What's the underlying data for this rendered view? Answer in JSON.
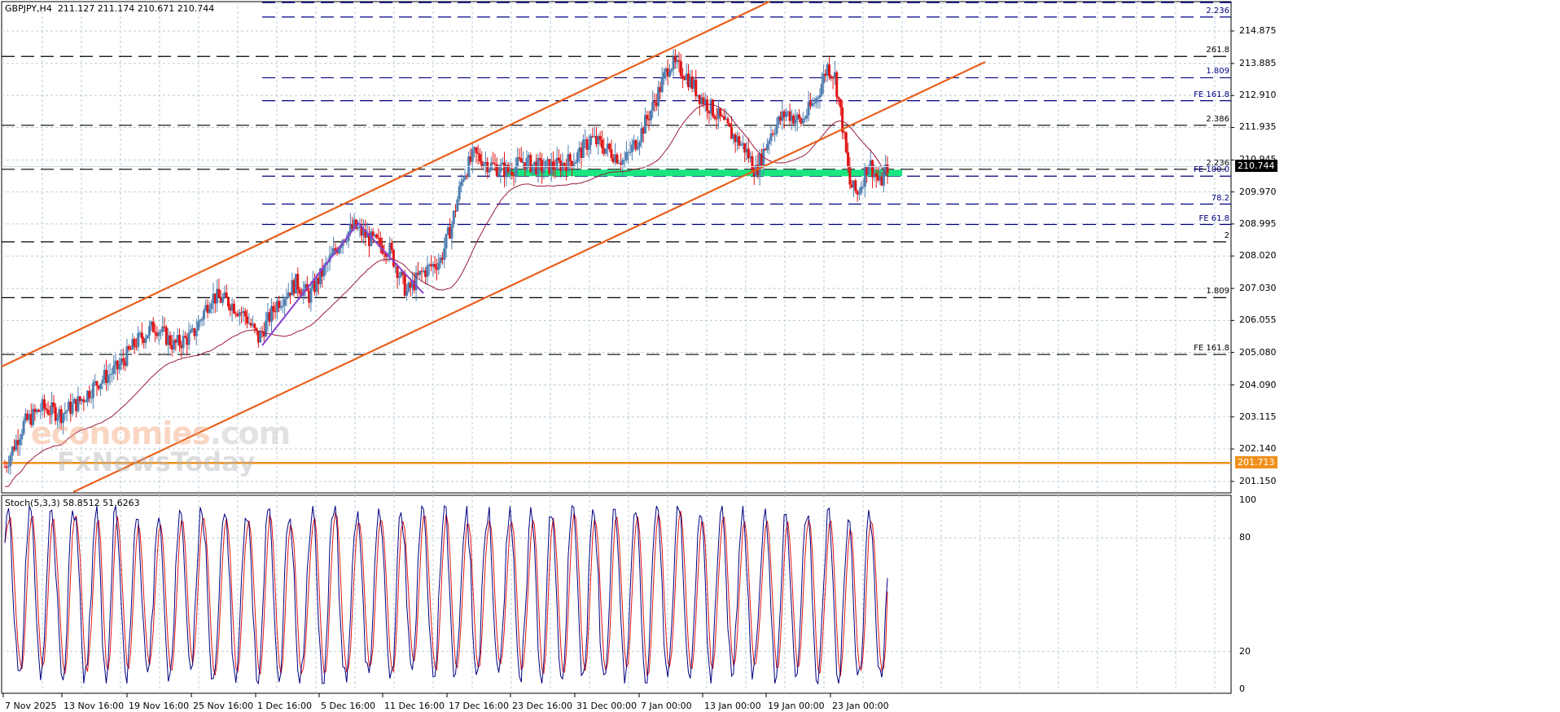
{
  "header": {
    "symbol_label": "GBPJPY,H4  211.127 211.174 210.671 210.744"
  },
  "stoch": {
    "label": "Stoch(5,3,3) 58.8512 51.6263",
    "levels": [
      "100",
      "80",
      "20",
      "0"
    ]
  },
  "watermark": {
    "line1_a": "economies",
    "line1_b": ".com",
    "line2": "FxNewsToday"
  },
  "colors": {
    "bull": "#4f7fb0",
    "bear": "#e01515",
    "channel": "#e8601c",
    "ma": "#9b1c3c",
    "support_band": "#19e67f",
    "zigzag": "#8a3fd1",
    "hline_orange": "#f0901c",
    "fib_blue": "#000080",
    "fib_black": "#000000",
    "grid": "#b8cdd8",
    "stoch_main": "#000080",
    "stoch_signal": "#e01515"
  },
  "price_axis": {
    "ticks": [
      "214.875",
      "213.885",
      "212.910",
      "211.935",
      "210.945",
      "209.970",
      "208.995",
      "208.020",
      "207.030",
      "206.055",
      "205.080",
      "204.090",
      "203.115",
      "202.140",
      "201.150"
    ],
    "current_price": "210.744",
    "orange_line_price": "201.713"
  },
  "time_axis": {
    "labels": [
      "7 Nov 2025",
      "13 Nov 16:00",
      "19 Nov 16:00",
      "25 Nov 16:00",
      "1 Dec 16:00",
      "5 Dec 16:00",
      "11 Dec 16:00",
      "17 Dec 16:00",
      "23 Dec 16:00",
      "31 Dec 00:00",
      "7 Jan 00:00",
      "13 Jan 00:00",
      "19 Jan 00:00",
      "23 Jan 00:00"
    ]
  },
  "fib_labels": [
    {
      "text": "2.236",
      "color": "blue",
      "price": 215.3
    },
    {
      "text": "261.8",
      "color": "black",
      "price": 214.1
    },
    {
      "text": "1.809",
      "color": "blue",
      "price": 213.45
    },
    {
      "text": "FE 161.8",
      "color": "blue",
      "price": 212.75
    },
    {
      "text": "2.386",
      "color": "black",
      "price": 212.0
    },
    {
      "text": "2.236",
      "color": "black",
      "price": 210.66
    },
    {
      "text": "FE 100.0",
      "color": "blue",
      "price": 210.45
    },
    {
      "text": "78.2",
      "color": "blue",
      "price": 209.6
    },
    {
      "text": "FE 61.8",
      "color": "blue",
      "price": 208.98
    },
    {
      "text": "2",
      "color": "black",
      "price": 208.45
    },
    {
      "text": "1.809",
      "color": "black",
      "price": 206.75
    },
    {
      "text": "FE 161.8",
      "color": "black",
      "price": 205.02
    }
  ],
  "chart_data": {
    "type": "candlestick",
    "title": "GBPJPY,H4",
    "ohlc_header": {
      "open": 211.127,
      "high": 211.174,
      "low": 210.671,
      "close": 210.744
    },
    "ylim": [
      200.9,
      215.6
    ],
    "x_tick_labels": [
      "7 Nov 2025",
      "13 Nov 16:00",
      "19 Nov 16:00",
      "25 Nov 16:00",
      "1 Dec 16:00",
      "5 Dec 16:00",
      "11 Dec 16:00",
      "17 Dec 16:00",
      "23 Dec 16:00",
      "31 Dec 00:00",
      "7 Jan 00:00",
      "13 Jan 00:00",
      "19 Jan 00:00",
      "23 Jan 00:00"
    ],
    "close_path_approx": [
      [
        0,
        201.6
      ],
      [
        10,
        202.9
      ],
      [
        20,
        203.4
      ],
      [
        30,
        203.2
      ],
      [
        40,
        203.6
      ],
      [
        50,
        204.2
      ],
      [
        60,
        204.6
      ],
      [
        70,
        205.4
      ],
      [
        80,
        205.9
      ],
      [
        90,
        205.3
      ],
      [
        100,
        205.6
      ],
      [
        110,
        206.8
      ],
      [
        120,
        206.6
      ],
      [
        128,
        206.2
      ],
      [
        135,
        205.5
      ],
      [
        145,
        206.6
      ],
      [
        155,
        207.2
      ],
      [
        162,
        206.8
      ],
      [
        170,
        207.6
      ],
      [
        180,
        208.6
      ],
      [
        186,
        208.9
      ],
      [
        195,
        208.5
      ],
      [
        205,
        208.2
      ],
      [
        214,
        206.9
      ],
      [
        222,
        207.5
      ],
      [
        232,
        207.9
      ],
      [
        238,
        209.0
      ],
      [
        244,
        210.5
      ],
      [
        250,
        211.1
      ],
      [
        258,
        210.8
      ],
      [
        268,
        210.6
      ],
      [
        276,
        210.9
      ],
      [
        286,
        210.7
      ],
      [
        296,
        210.8
      ],
      [
        304,
        211.0
      ],
      [
        312,
        211.6
      ],
      [
        320,
        211.3
      ],
      [
        330,
        210.9
      ],
      [
        338,
        211.7
      ],
      [
        346,
        212.7
      ],
      [
        354,
        213.9
      ],
      [
        362,
        213.6
      ],
      [
        370,
        212.9
      ],
      [
        378,
        212.4
      ],
      [
        386,
        211.8
      ],
      [
        394,
        211.3
      ],
      [
        400,
        210.6
      ],
      [
        408,
        211.8
      ],
      [
        416,
        212.4
      ],
      [
        424,
        212.1
      ],
      [
        432,
        212.8
      ],
      [
        438,
        213.8
      ],
      [
        442,
        213.5
      ],
      [
        446,
        212.0
      ],
      [
        450,
        210.2
      ],
      [
        454,
        209.9
      ],
      [
        460,
        210.9
      ],
      [
        466,
        210.2
      ],
      [
        470,
        210.74
      ]
    ],
    "overlays": {
      "channel_upper": {
        "from": [
          0,
          205.9
        ],
        "to": [
          936,
          216.0
        ],
        "color": "#e8601c"
      },
      "channel_lower": {
        "from": [
          90,
          201.0
        ],
        "to": [
          1210,
          213.7
        ],
        "color": "#e8601c"
      },
      "moving_average": "dark red, rising from ~201.7 to ~211.4",
      "support_band": {
        "y_top": 210.65,
        "y_bottom": 210.45,
        "x_range": [
          620,
          1108
        ]
      },
      "horizontal_orange": 201.713,
      "zigzag": [
        [
          322,
          205.2
        ],
        [
          440,
          208.9
        ],
        [
          520,
          206.9
        ]
      ]
    },
    "stochastic": {
      "name": "Stoch(5,3,3)",
      "main": 58.8512,
      "signal": 51.6263,
      "levels": [
        80,
        20
      ],
      "ylim": [
        0,
        100
      ]
    },
    "grid": true
  }
}
